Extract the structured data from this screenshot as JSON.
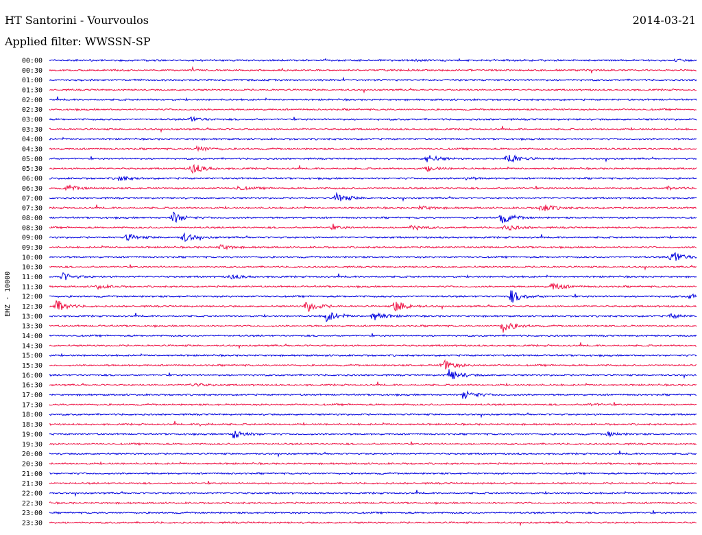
{
  "header": {
    "title": "HT Santorini - Vourvoulos",
    "date": "2014-03-21",
    "filter": "Applied filter: WWSSN-SP",
    "channel_label": "EHZ - 10000"
  },
  "colors": {
    "trace_a": "#0000dd",
    "trace_b": "#ee1144",
    "text": "#000000",
    "background": "#ffffff"
  },
  "chart_data": {
    "type": "line",
    "title": "HT Santorini - Vourvoulos",
    "subtitle": "Applied filter: WWSSN-SP",
    "ylabel": "EHZ - 10000",
    "grid": false,
    "legend": "none",
    "tick_labels": [
      "00:00",
      "00:30",
      "01:00",
      "01:30",
      "02:00",
      "02:30",
      "03:00",
      "03:30",
      "04:00",
      "04:30",
      "05:00",
      "05:30",
      "06:00",
      "06:30",
      "07:00",
      "07:30",
      "08:00",
      "08:30",
      "09:00",
      "09:30",
      "10:00",
      "10:30",
      "11:00",
      "11:30",
      "12:00",
      "12:30",
      "13:00",
      "13:30",
      "14:00",
      "14:30",
      "15:00",
      "15:30",
      "16:00",
      "16:30",
      "17:00",
      "17:30",
      "18:00",
      "18:30",
      "19:00",
      "19:30",
      "20:00",
      "20:30",
      "21:00",
      "21:30",
      "22:00",
      "22:30",
      "23:00",
      "23:30"
    ],
    "x_minutes_per_line": 30,
    "xlim": [
      0,
      30
    ],
    "events": [
      {
        "line": 0,
        "t": 17.0,
        "amp": 0.18
      },
      {
        "line": 0,
        "t": 29.0,
        "amp": 0.18
      },
      {
        "line": 6,
        "t": 6.5,
        "amp": 0.6
      },
      {
        "line": 9,
        "t": 6.8,
        "amp": 0.8
      },
      {
        "line": 10,
        "t": 17.5,
        "amp": 1.0
      },
      {
        "line": 10,
        "t": 21.2,
        "amp": 1.5
      },
      {
        "line": 11,
        "t": 6.6,
        "amp": 1.4
      },
      {
        "line": 11,
        "t": 17.5,
        "amp": 0.6
      },
      {
        "line": 12,
        "t": 3.2,
        "amp": 0.6
      },
      {
        "line": 12,
        "t": 19.3,
        "amp": 0.3
      },
      {
        "line": 13,
        "t": 0.8,
        "amp": 0.8
      },
      {
        "line": 13,
        "t": 8.7,
        "amp": 0.5
      },
      {
        "line": 13,
        "t": 28.7,
        "amp": 0.3
      },
      {
        "line": 14,
        "t": 13.3,
        "amp": 1.2
      },
      {
        "line": 15,
        "t": 17.2,
        "amp": 0.5
      },
      {
        "line": 15,
        "t": 22.8,
        "amp": 1.1
      },
      {
        "line": 16,
        "t": 5.7,
        "amp": 1.4
      },
      {
        "line": 16,
        "t": 20.9,
        "amp": 1.5
      },
      {
        "line": 17,
        "t": 13.1,
        "amp": 0.4
      },
      {
        "line": 17,
        "t": 16.8,
        "amp": 0.6
      },
      {
        "line": 17,
        "t": 21.1,
        "amp": 0.9
      },
      {
        "line": 18,
        "t": 3.6,
        "amp": 0.8
      },
      {
        "line": 18,
        "t": 6.2,
        "amp": 1.1
      },
      {
        "line": 19,
        "t": 7.9,
        "amp": 0.6
      },
      {
        "line": 20,
        "t": 28.8,
        "amp": 1.6
      },
      {
        "line": 22,
        "t": 0.6,
        "amp": 1.0
      },
      {
        "line": 22,
        "t": 8.4,
        "amp": 0.6
      },
      {
        "line": 23,
        "t": 2.2,
        "amp": 0.5
      },
      {
        "line": 23,
        "t": 23.3,
        "amp": 1.0
      },
      {
        "line": 24,
        "t": 21.4,
        "amp": 1.6
      },
      {
        "line": 24,
        "t": 29.7,
        "amp": 0.6
      },
      {
        "line": 25,
        "t": 0.3,
        "amp": 1.5
      },
      {
        "line": 25,
        "t": 11.9,
        "amp": 1.5
      },
      {
        "line": 25,
        "t": 16.0,
        "amp": 1.6
      },
      {
        "line": 26,
        "t": 12.8,
        "amp": 1.5
      },
      {
        "line": 26,
        "t": 15.0,
        "amp": 1.2
      },
      {
        "line": 26,
        "t": 28.8,
        "amp": 0.5
      },
      {
        "line": 27,
        "t": 21.0,
        "amp": 1.6
      },
      {
        "line": 31,
        "t": 18.2,
        "amp": 1.5
      },
      {
        "line": 32,
        "t": 18.5,
        "amp": 1.5
      },
      {
        "line": 33,
        "t": 6.6,
        "amp": 0.5
      },
      {
        "line": 34,
        "t": 19.2,
        "amp": 1.2
      },
      {
        "line": 35,
        "t": 25.0,
        "amp": 0.3
      },
      {
        "line": 37,
        "t": 7.0,
        "amp": 0.3
      },
      {
        "line": 38,
        "t": 8.5,
        "amp": 1.2
      },
      {
        "line": 38,
        "t": 25.9,
        "amp": 0.5
      }
    ]
  }
}
